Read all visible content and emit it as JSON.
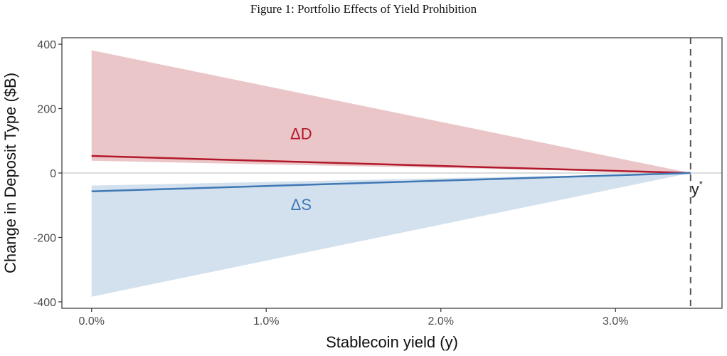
{
  "chart_data": {
    "type": "area",
    "title": "Figure 1: Portfolio Effects of Yield Prohibition",
    "xlabel": "Stablecoin yield (y)",
    "ylabel": "Change in Deposit Type ($B)",
    "xlim": [
      -0.0017,
      0.0361
    ],
    "ylim": [
      -420,
      420
    ],
    "x_ticks": [
      0.0,
      0.01,
      0.02,
      0.03
    ],
    "x_tick_labels": [
      "0.0%",
      "1.0%",
      "2.0%",
      "3.0%"
    ],
    "y_ticks": [
      400,
      200,
      0,
      -200,
      -400
    ],
    "y_tick_labels": [
      "400",
      "200",
      "0",
      "-200",
      "-400"
    ],
    "grid": false,
    "reference_lines": {
      "horizontal_at": 0,
      "vertical_at": 0.0343,
      "vertical_label": "y*"
    },
    "series": [
      {
        "name": "ΔD",
        "color": "#b2182b",
        "band_color": "#ebc6c8",
        "x": [
          0.0,
          0.0343
        ],
        "values": [
          53,
          0
        ],
        "band_upper": [
          381,
          0
        ],
        "band_lower": [
          38,
          0
        ]
      },
      {
        "name": "ΔS",
        "color": "#3f78b5",
        "band_color": "#d3e1ee",
        "x": [
          0.0,
          0.0343
        ],
        "values": [
          -57,
          0
        ],
        "band_upper": [
          -39,
          0
        ],
        "band_lower": [
          -384,
          0
        ]
      }
    ],
    "annotations": [
      {
        "text": "ΔD",
        "x": 0.012,
        "y": 105,
        "color": "#b2182b"
      },
      {
        "text": "ΔS",
        "x": 0.012,
        "y": -115,
        "color": "#3f78b5"
      }
    ]
  }
}
